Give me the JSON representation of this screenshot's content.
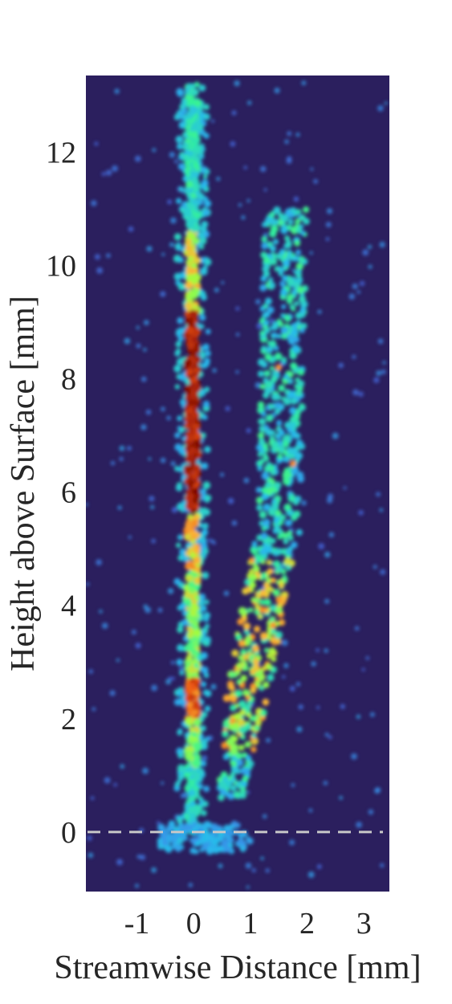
{
  "chart_data": {
    "type": "heatmap",
    "title": "",
    "xlabel": "Streamwise Distance [mm]",
    "ylabel": "Height above Surface [mm]",
    "xlim": [
      -1.9,
      3.45
    ],
    "ylim": [
      -1.05,
      13.35
    ],
    "xticks": [
      "-1",
      "0",
      "1",
      "2",
      "3"
    ],
    "yticks": [
      "0",
      "2",
      "4",
      "6",
      "8",
      "10",
      "12"
    ],
    "grid": false,
    "colormap": "turbo",
    "background_color": "#2b1f5e",
    "reference_line": {
      "y": 0,
      "style": "dashed",
      "color": "#c8c8c8"
    },
    "features": [
      {
        "name": "primary streak",
        "x_range": [
          -0.1,
          0.1
        ],
        "y_range": [
          0,
          13.2
        ],
        "peak_intensity_y_range": [
          5.6,
          9.2
        ]
      },
      {
        "name": "secondary streak",
        "x_range": [
          0.5,
          2.0
        ],
        "y_range": [
          0.6,
          11.0
        ]
      }
    ]
  }
}
